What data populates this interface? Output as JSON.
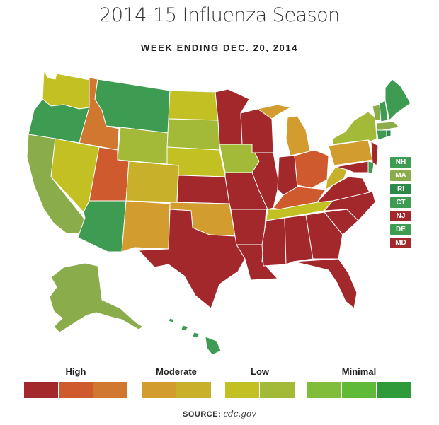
{
  "title": "2014-15 Influenza Season",
  "subtitle": "WEEK ENDING DEC. 20, 2014",
  "colors": {
    "high_1": "#a3282c",
    "high_2": "#cf5a2d",
    "high_3": "#d0782f",
    "moderate_1": "#d39c2e",
    "moderate_2": "#c9b02a",
    "low_1": "#c2c023",
    "low_2": "#a3b938",
    "minimal_1": "#7fbd3a",
    "minimal_2": "#5fba37",
    "minimal_3": "#2e9a3a",
    "green_state": "#3d9b52",
    "olive_state": "#8bac4a"
  },
  "small_states": [
    {
      "abbr": "NH",
      "color": "#3d9b52"
    },
    {
      "abbr": "MA",
      "color": "#8bac4a"
    },
    {
      "abbr": "RI",
      "color": "#2e8a48"
    },
    {
      "abbr": "CT",
      "color": "#3d9b52"
    },
    {
      "abbr": "NJ",
      "color": "#a3282c"
    },
    {
      "abbr": "DE",
      "color": "#3d9b52"
    },
    {
      "abbr": "MD",
      "color": "#a3282c"
    }
  ],
  "legend": {
    "groups": [
      {
        "label": "High",
        "colors": [
          "#a3282c",
          "#cf5a2d",
          "#d0782f"
        ]
      },
      {
        "label": "Moderate",
        "colors": [
          "#d39c2e",
          "#c9b02a"
        ]
      },
      {
        "label": "Low",
        "colors": [
          "#c2c023",
          "#a3b938"
        ]
      },
      {
        "label": "Minimal",
        "colors": [
          "#7fbd3a",
          "#5fba37",
          "#2e9a3a"
        ]
      }
    ]
  },
  "source": {
    "label": "SOURCE:",
    "value": "cdc.gov"
  }
}
